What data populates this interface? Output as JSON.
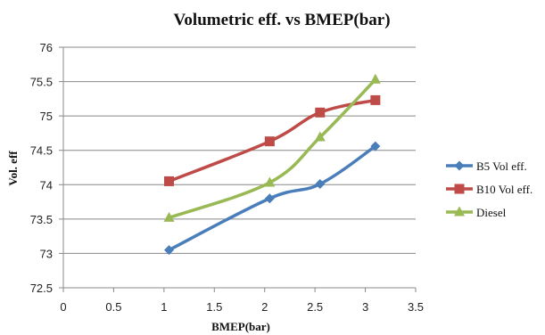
{
  "chart_data": {
    "type": "line",
    "title": "Volumetric eff. vs BMEP(bar)",
    "xlabel": "BMEP(bar)",
    "ylabel": "Vol. eff",
    "xlim": [
      0,
      3.5
    ],
    "ylim": [
      72.5,
      76
    ],
    "x_ticks": [
      "0",
      "0.5",
      "1",
      "1.5",
      "2",
      "2.5",
      "3",
      "3.5"
    ],
    "y_ticks": [
      "72.5",
      "73",
      "73.5",
      "74",
      "74.5",
      "75",
      "75.5",
      "76"
    ],
    "grid": "horizontal",
    "legend_position": "right",
    "series": [
      {
        "name": "B5 Vol eff.",
        "color": "#4A7EBB",
        "marker": "diamond",
        "x": [
          1.05,
          2.05,
          2.55,
          3.1
        ],
        "y": [
          73.05,
          73.8,
          74.01,
          74.56
        ]
      },
      {
        "name": "B10 Vol eff.",
        "color": "#BE4B48",
        "marker": "square",
        "x": [
          1.05,
          2.05,
          2.55,
          3.1
        ],
        "y": [
          74.05,
          74.63,
          75.05,
          75.23
        ]
      },
      {
        "name": "Diesel",
        "color": "#98B954",
        "marker": "triangle",
        "x": [
          1.05,
          2.05,
          2.55,
          3.1
        ],
        "y": [
          73.52,
          74.03,
          74.69,
          75.53
        ]
      }
    ]
  }
}
